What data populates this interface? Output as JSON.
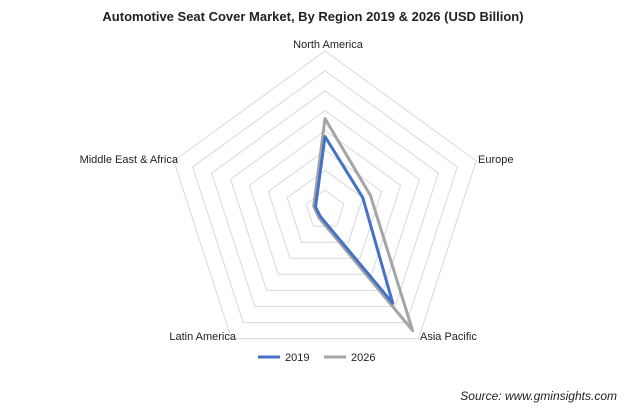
{
  "colors": {
    "series_2019": "#4472c4",
    "series_2026": "#a5a5a5",
    "grid": "#d9d9d9",
    "text": "#222222"
  },
  "chart_data": {
    "type": "radar",
    "title": "Automotive  Seat Cover Market, By Region 2019 & 2026 (USD Billion)",
    "categories": [
      "North America",
      "Europe",
      "Asia Pacific",
      "Latin America",
      "Middle East & Africa"
    ],
    "series": [
      {
        "name": "2019",
        "values": [
          3.7,
          2.0,
          5.8,
          0.4,
          0.5
        ]
      },
      {
        "name": "2026",
        "values": [
          4.6,
          2.4,
          7.5,
          0.5,
          0.6
        ]
      }
    ],
    "rlim": [
      0,
      8
    ],
    "rings": 8,
    "grid": true,
    "legend": "bottom"
  },
  "source_text": "Source: www.gminsights.com"
}
